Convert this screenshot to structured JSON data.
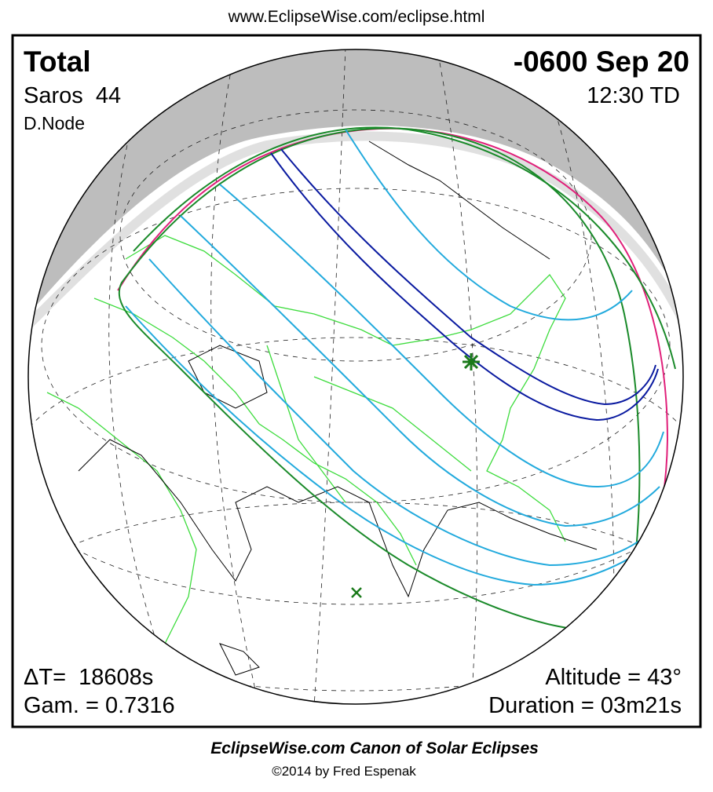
{
  "header": {
    "url": "www.EclipseWise.com/eclipse.html"
  },
  "panel": {
    "type_label": "Total",
    "saros": "Saros  44",
    "node": "D.Node",
    "date": "-0600 Sep 20",
    "time": "12:30 TD",
    "delta_t": "ΔT=  18608s",
    "gamma": "Gam. = 0.7316",
    "altitude": "Altitude = 43°",
    "duration": "Duration = 03m21s"
  },
  "footer": {
    "title": "EclipseWise.com Canon of Solar Eclipses",
    "copyright": "©2014 by Fred Espenak"
  }
}
